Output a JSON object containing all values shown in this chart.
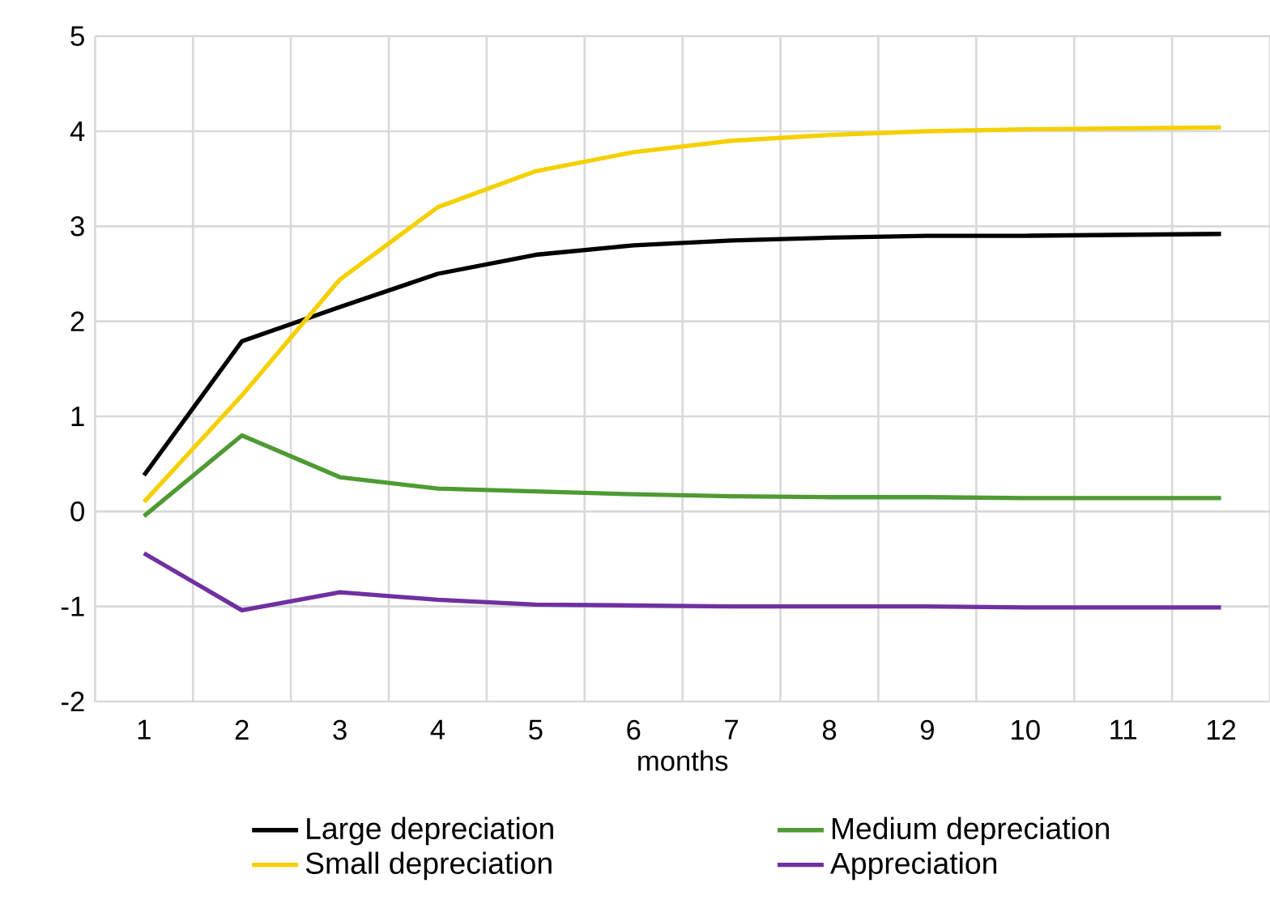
{
  "chart_data": {
    "type": "line",
    "xlabel": "months",
    "categories": [
      "1",
      "2",
      "3",
      "4",
      "5",
      "6",
      "7",
      "8",
      "9",
      "10",
      "11",
      "12"
    ],
    "series": [
      {
        "name": "Large depreciation",
        "color": "#000000",
        "values": [
          0.38,
          1.79,
          2.15,
          2.5,
          2.7,
          2.8,
          2.85,
          2.88,
          2.9,
          2.9,
          2.91,
          2.92
        ]
      },
      {
        "name": "Medium depreciation",
        "color": "#4e9a33",
        "values": [
          -0.05,
          0.8,
          0.36,
          0.24,
          0.21,
          0.18,
          0.16,
          0.15,
          0.15,
          0.14,
          0.14,
          0.14
        ]
      },
      {
        "name": "Small depreciation",
        "color": "#f5d000",
        "values": [
          0.1,
          1.22,
          2.44,
          3.2,
          3.58,
          3.78,
          3.9,
          3.96,
          4.0,
          4.02,
          4.03,
          4.04
        ]
      },
      {
        "name": "Appreciation",
        "color": "#7030a0",
        "values": [
          -0.44,
          -1.04,
          -0.85,
          -0.93,
          -0.98,
          -0.99,
          -1.0,
          -1.0,
          -1.0,
          -1.01,
          -1.01,
          -1.01
        ]
      }
    ],
    "ylim": [
      -2,
      5
    ],
    "yticks": [
      -2,
      -1,
      0,
      1,
      2,
      3,
      4,
      5
    ],
    "grid": true,
    "legend": "bottom",
    "marker": "none",
    "line_style": "solid"
  }
}
